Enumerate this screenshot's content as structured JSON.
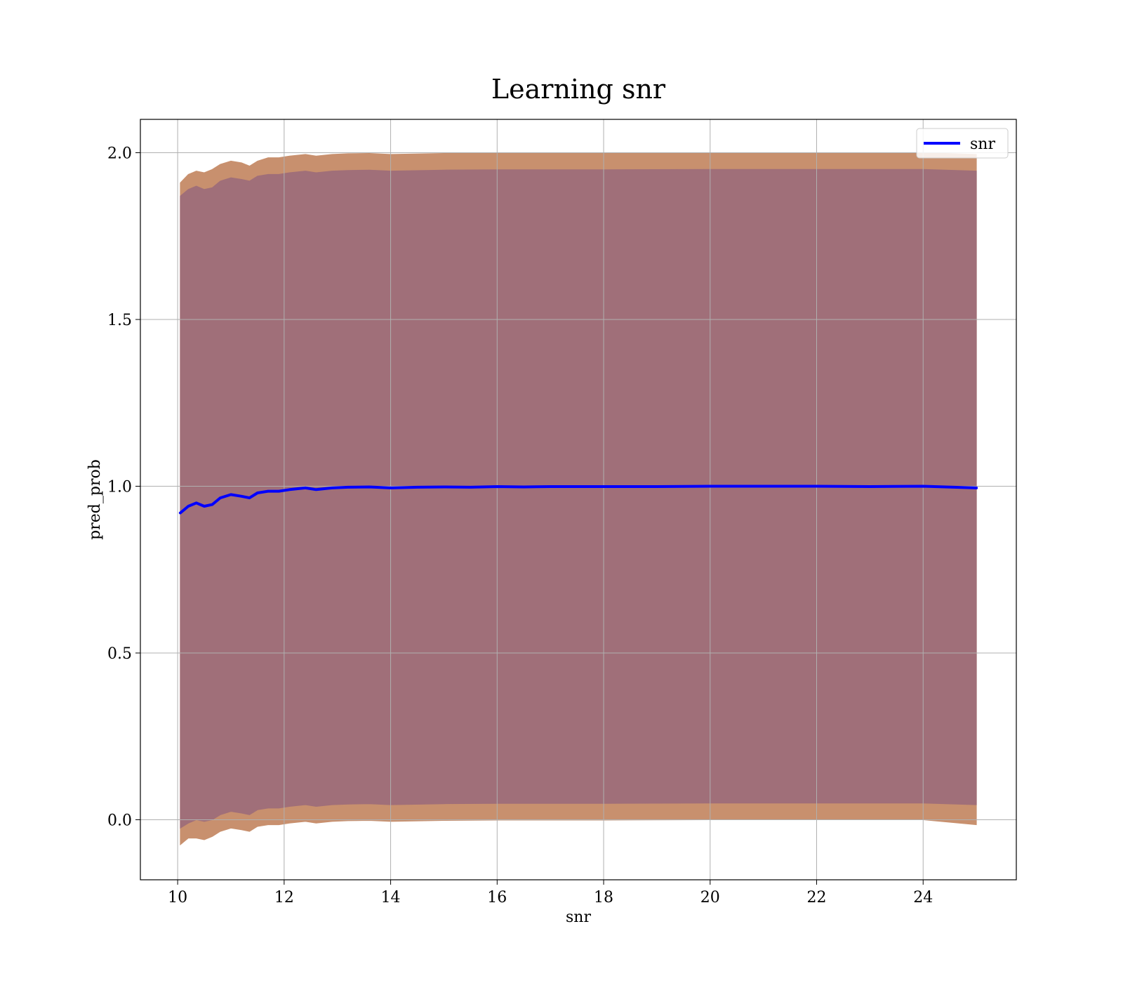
{
  "chart_data": {
    "type": "line",
    "title": "Learning snr",
    "xlabel": "snr",
    "ylabel": "pred_prob",
    "xlim": [
      9.3,
      25.75
    ],
    "ylim": [
      -0.18,
      2.1
    ],
    "xticks": [
      10,
      12,
      14,
      16,
      18,
      20,
      22,
      24
    ],
    "xtick_labels": [
      "10",
      "12",
      "14",
      "16",
      "18",
      "20",
      "22",
      "24"
    ],
    "yticks": [
      0.0,
      0.5,
      1.0,
      1.5,
      2.0
    ],
    "ytick_labels": [
      "0.0",
      "0.5",
      "1.0",
      "1.5",
      "2.0"
    ],
    "grid": true,
    "legend": {
      "position": "top-right",
      "entries": [
        {
          "label": "snr",
          "color": "#0000ff"
        }
      ]
    },
    "series": [
      {
        "name": "snr",
        "color": "#0000ff",
        "x": [
          10.05,
          10.2,
          10.35,
          10.5,
          10.65,
          10.8,
          11.0,
          11.2,
          11.35,
          11.5,
          11.7,
          11.9,
          12.1,
          12.4,
          12.6,
          12.9,
          13.2,
          13.6,
          14.0,
          14.5,
          15.0,
          15.5,
          16.0,
          16.5,
          17.0,
          18.0,
          19.0,
          20.0,
          21.0,
          22.0,
          23.0,
          24.0,
          25.0
        ],
        "y": [
          0.92,
          0.94,
          0.95,
          0.94,
          0.945,
          0.965,
          0.975,
          0.97,
          0.965,
          0.98,
          0.985,
          0.985,
          0.99,
          0.995,
          0.99,
          0.995,
          0.997,
          0.998,
          0.995,
          0.997,
          0.998,
          0.997,
          0.999,
          0.998,
          0.999,
          0.999,
          0.999,
          1.0,
          1.0,
          1.0,
          0.999,
          1.0,
          0.995
        ]
      }
    ],
    "bands": [
      {
        "color": "#c8906e",
        "x": [
          10.05,
          10.2,
          10.35,
          10.5,
          10.65,
          10.8,
          11.0,
          11.2,
          11.35,
          11.5,
          11.7,
          11.9,
          12.1,
          12.4,
          12.6,
          12.9,
          13.2,
          13.6,
          14.0,
          15.0,
          16.0,
          18.0,
          20.0,
          22.0,
          24.0,
          25.0
        ],
        "upper": [
          1.91,
          1.935,
          1.945,
          1.94,
          1.95,
          1.965,
          1.975,
          1.97,
          1.96,
          1.975,
          1.985,
          1.985,
          1.99,
          1.995,
          1.99,
          1.995,
          1.997,
          1.998,
          1.995,
          1.998,
          1.999,
          1.999,
          2.0,
          2.0,
          2.0,
          1.995
        ],
        "lower": [
          -0.075,
          -0.055,
          -0.055,
          -0.06,
          -0.05,
          -0.035,
          -0.025,
          -0.03,
          -0.035,
          -0.02,
          -0.015,
          -0.015,
          -0.01,
          -0.005,
          -0.01,
          -0.005,
          -0.003,
          -0.002,
          -0.005,
          -0.002,
          -0.001,
          -0.001,
          0.0,
          0.0,
          0.0,
          -0.015
        ]
      },
      {
        "color": "#a06f79",
        "x": [
          10.05,
          10.2,
          10.35,
          10.5,
          10.65,
          10.8,
          11.0,
          11.2,
          11.35,
          11.5,
          11.7,
          11.9,
          12.1,
          12.4,
          12.6,
          12.9,
          13.2,
          13.6,
          14.0,
          15.0,
          16.0,
          18.0,
          20.0,
          22.0,
          24.0,
          25.0
        ],
        "upper": [
          1.87,
          1.89,
          1.9,
          1.89,
          1.895,
          1.915,
          1.925,
          1.92,
          1.915,
          1.93,
          1.935,
          1.935,
          1.94,
          1.945,
          1.94,
          1.945,
          1.947,
          1.948,
          1.945,
          1.948,
          1.949,
          1.949,
          1.95,
          1.95,
          1.95,
          1.945
        ],
        "lower": [
          -0.025,
          -0.01,
          0.0,
          -0.005,
          0.0,
          0.015,
          0.025,
          0.02,
          0.015,
          0.03,
          0.035,
          0.035,
          0.04,
          0.045,
          0.04,
          0.045,
          0.047,
          0.048,
          0.045,
          0.048,
          0.049,
          0.049,
          0.05,
          0.05,
          0.05,
          0.045
        ]
      }
    ]
  }
}
